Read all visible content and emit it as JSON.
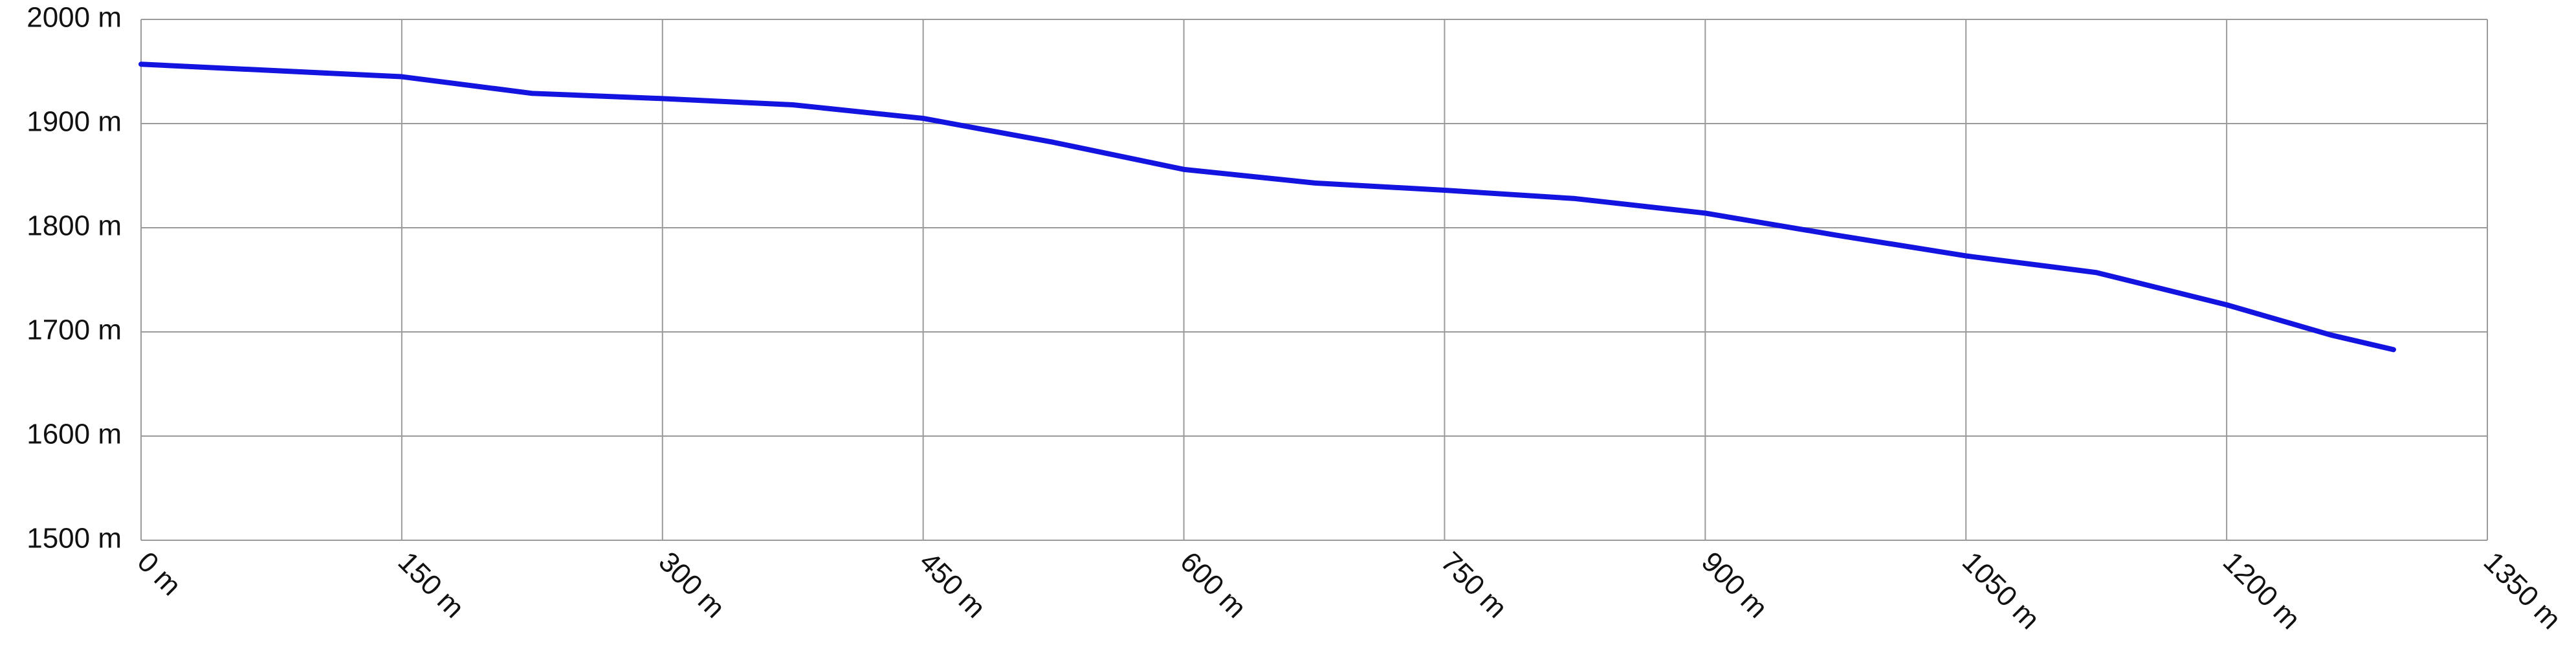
{
  "chart_data": {
    "type": "line",
    "x": [
      0,
      150,
      225,
      300,
      375,
      450,
      525,
      600,
      675,
      750,
      825,
      900,
      975,
      1050,
      1125,
      1200,
      1260,
      1296
    ],
    "series": [
      {
        "color": "#1414e0",
        "values": [
          1957,
          1945,
          1929,
          1924,
          1918,
          1905,
          1882,
          1856,
          1843,
          1836,
          1828,
          1814,
          1793,
          1773,
          1757,
          1726,
          1697,
          1683
        ]
      }
    ],
    "xlim": [
      0,
      1350
    ],
    "xticks": [
      {
        "value": 0,
        "label": "0 m"
      },
      {
        "value": 150,
        "label": "150 m"
      },
      {
        "value": 300,
        "label": "300 m"
      },
      {
        "value": 450,
        "label": "450 m"
      },
      {
        "value": 600,
        "label": "600 m"
      },
      {
        "value": 750,
        "label": "750 m"
      },
      {
        "value": 900,
        "label": "900 m"
      },
      {
        "value": 1050,
        "label": "1050 m"
      },
      {
        "value": 1200,
        "label": "1200 m"
      },
      {
        "value": 1350,
        "label": "1350 m"
      }
    ],
    "ylim": [
      1500,
      2000
    ],
    "yticks": [
      {
        "value": 1500,
        "label": "1500 m"
      },
      {
        "value": 1600,
        "label": "1600 m"
      },
      {
        "value": 1700,
        "label": "1700 m"
      },
      {
        "value": 1800,
        "label": "1800 m"
      },
      {
        "value": 1900,
        "label": "1900 m"
      },
      {
        "value": 2000,
        "label": "2000 m"
      }
    ],
    "grid": true
  }
}
